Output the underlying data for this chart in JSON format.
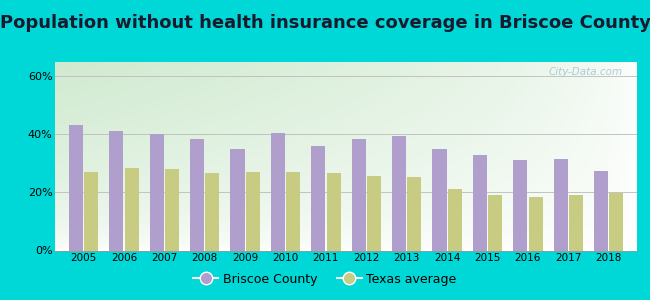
{
  "title": "Population without health insurance coverage in Briscoe County",
  "years": [
    2005,
    2006,
    2007,
    2008,
    2009,
    2010,
    2011,
    2012,
    2013,
    2014,
    2015,
    2016,
    2017,
    2018
  ],
  "briscoe": [
    0.43,
    0.41,
    0.4,
    0.385,
    0.35,
    0.405,
    0.36,
    0.385,
    0.395,
    0.35,
    0.33,
    0.31,
    0.315,
    0.275
  ],
  "texas": [
    0.27,
    0.285,
    0.28,
    0.265,
    0.27,
    0.27,
    0.265,
    0.255,
    0.252,
    0.21,
    0.19,
    0.185,
    0.19,
    0.197
  ],
  "briscoe_color": "#b09fcc",
  "texas_color": "#c8cb82",
  "background_outer": "#00d8d8",
  "ylim": [
    0,
    0.65
  ],
  "yticks": [
    0.0,
    0.2,
    0.4,
    0.6
  ],
  "ytick_labels": [
    "0%",
    "20%",
    "40%",
    "60%"
  ],
  "title_fontsize": 13,
  "title_color": "#1a1a2e",
  "watermark": "City-Data.com",
  "legend_briscoe": "Briscoe County",
  "legend_texas": "Texas average",
  "bar_width": 0.35,
  "bar_gap": 0.03
}
